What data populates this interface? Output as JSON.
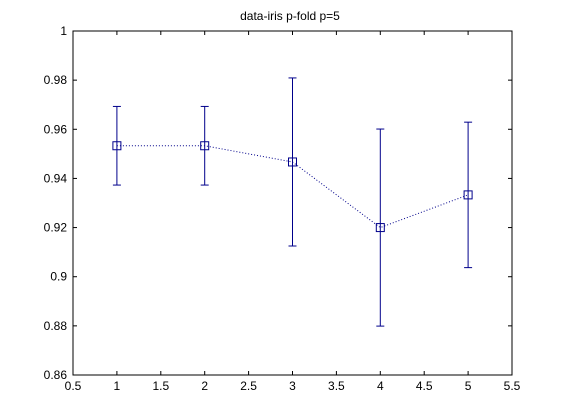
{
  "chart_data": {
    "type": "line",
    "title": "data-iris  p-fold p=5",
    "xlabel": "",
    "ylabel": "",
    "xlim": [
      0.5,
      5.5
    ],
    "ylim": [
      0.86,
      1.0
    ],
    "x_ticks": [
      0.5,
      1,
      1.5,
      2,
      2.5,
      3,
      3.5,
      4,
      4.5,
      5,
      5.5
    ],
    "x_tick_labels": [
      "0.5",
      "1",
      "1.5",
      "2",
      "2.5",
      "3",
      "3.5",
      "4",
      "4.5",
      "5",
      "5.5"
    ],
    "y_ticks": [
      0.86,
      0.88,
      0.9,
      0.92,
      0.94,
      0.96,
      0.98,
      1.0
    ],
    "y_tick_labels": [
      "0.86",
      "0.88",
      "0.9",
      "0.92",
      "0.94",
      "0.96",
      "0.98",
      "1"
    ],
    "grid": false,
    "series": [
      {
        "x": [
          1,
          2,
          3,
          4,
          5
        ],
        "y": [
          0.9533,
          0.9533,
          0.9467,
          0.92,
          0.9333
        ],
        "lower": [
          0.9373,
          0.9373,
          0.9125,
          0.8799,
          0.9037
        ],
        "upper": [
          0.9693,
          0.9693,
          0.9809,
          0.9601,
          0.9629
        ],
        "color": "#00008B",
        "line_style": "dotted",
        "marker": "square"
      }
    ]
  }
}
